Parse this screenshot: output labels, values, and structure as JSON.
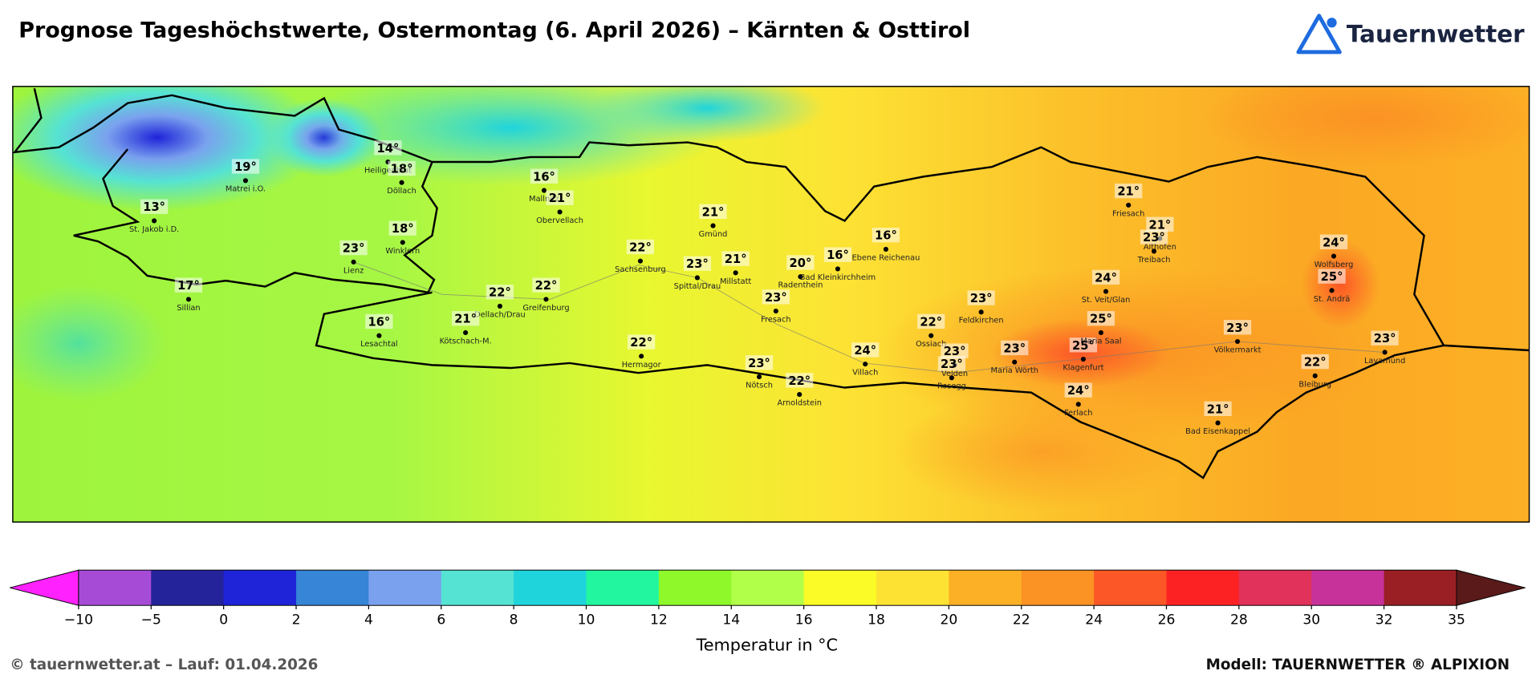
{
  "header": {
    "title": "Prognose Tageshöchstwerte, Ostermontag (6. April 2026) – Kärnten & Osttirol",
    "logo": "Tauernwetter"
  },
  "map": {
    "cities": [
      {
        "name": "Matrei i.O.",
        "temp": "19°"
      },
      {
        "name": "Heiligenblut",
        "temp": "14°"
      },
      {
        "name": "Döllach",
        "temp": "18°"
      },
      {
        "name": "St. Jakob i.D.",
        "temp": "13°"
      },
      {
        "name": "Winklern",
        "temp": "18°"
      },
      {
        "name": "Lienz",
        "temp": "23°"
      },
      {
        "name": "Sillian",
        "temp": "17°"
      },
      {
        "name": "Lesachtal",
        "temp": "16°"
      },
      {
        "name": "Mallnitz",
        "temp": "16°"
      },
      {
        "name": "Obervellach",
        "temp": "21°"
      },
      {
        "name": "Gmünd",
        "temp": "21°"
      },
      {
        "name": "Sachsenburg",
        "temp": "22°"
      },
      {
        "name": "Dellach/Drau",
        "temp": "22°"
      },
      {
        "name": "Greifenburg",
        "temp": "22°"
      },
      {
        "name": "Kötschach-M.",
        "temp": "21°"
      },
      {
        "name": "Spittal/Drau",
        "temp": "23°"
      },
      {
        "name": "Millstatt",
        "temp": "21°"
      },
      {
        "name": "Radenthein",
        "temp": "20°"
      },
      {
        "name": "Bad Kleinkirchheim",
        "temp": "16°"
      },
      {
        "name": "Ebene Reichenau",
        "temp": "16°"
      },
      {
        "name": "Fresach",
        "temp": "23°"
      },
      {
        "name": "Hermagor",
        "temp": "22°"
      },
      {
        "name": "Nötsch",
        "temp": "23°"
      },
      {
        "name": "Arnoldstein",
        "temp": "22°"
      },
      {
        "name": "Villach",
        "temp": "24°"
      },
      {
        "name": "Ossiach",
        "temp": "22°"
      },
      {
        "name": "Feldkirchen",
        "temp": "23°"
      },
      {
        "name": "Velden",
        "temp": "23°"
      },
      {
        "name": "Rosegg",
        "temp": "23°"
      },
      {
        "name": "Maria Wörth",
        "temp": "23°"
      },
      {
        "name": "Klagenfurt",
        "temp": "25°"
      },
      {
        "name": "Maria Saal",
        "temp": "25°"
      },
      {
        "name": "St. Veit/Glan",
        "temp": "24°"
      },
      {
        "name": "Ferlach",
        "temp": "24°"
      },
      {
        "name": "Friesach",
        "temp": "21°"
      },
      {
        "name": "Althofen",
        "temp": "21°"
      },
      {
        "name": "Treibach",
        "temp": "23°"
      },
      {
        "name": "Wolfsberg",
        "temp": "24°"
      },
      {
        "name": "St. Andrä",
        "temp": "25°"
      },
      {
        "name": "Völkermarkt",
        "temp": "23°"
      },
      {
        "name": "Bleiburg",
        "temp": "22°"
      },
      {
        "name": "Lavamünd",
        "temp": "23°"
      },
      {
        "name": "Bad Eisenkappel",
        "temp": "21°"
      }
    ]
  },
  "colorbar": {
    "label": "Temperatur in °C",
    "ticks": [
      "−10",
      "−5",
      "0",
      "2",
      "4",
      "6",
      "8",
      "10",
      "12",
      "14",
      "16",
      "18",
      "20",
      "22",
      "24",
      "26",
      "28",
      "30",
      "32",
      "35"
    ],
    "colors": [
      "#a64bd6",
      "#25239a",
      "#1f24d9",
      "#3685d6",
      "#7aa1ee",
      "#55e3d3",
      "#20d4dc",
      "#22f7a0",
      "#8ef82a",
      "#b2ff4a",
      "#fbfb27",
      "#fde234",
      "#fcb025",
      "#fb9224",
      "#fc5727",
      "#fc2224",
      "#e0325a",
      "#c7319a",
      "#991f24"
    ],
    "under_color": "#ff22ff",
    "over_color": "#5a1a1a"
  },
  "footer": {
    "left": "© tauernwetter.at – Lauf: 01.04.2026",
    "right": "Modell: TAUERNWETTER ® ALPIXION"
  }
}
